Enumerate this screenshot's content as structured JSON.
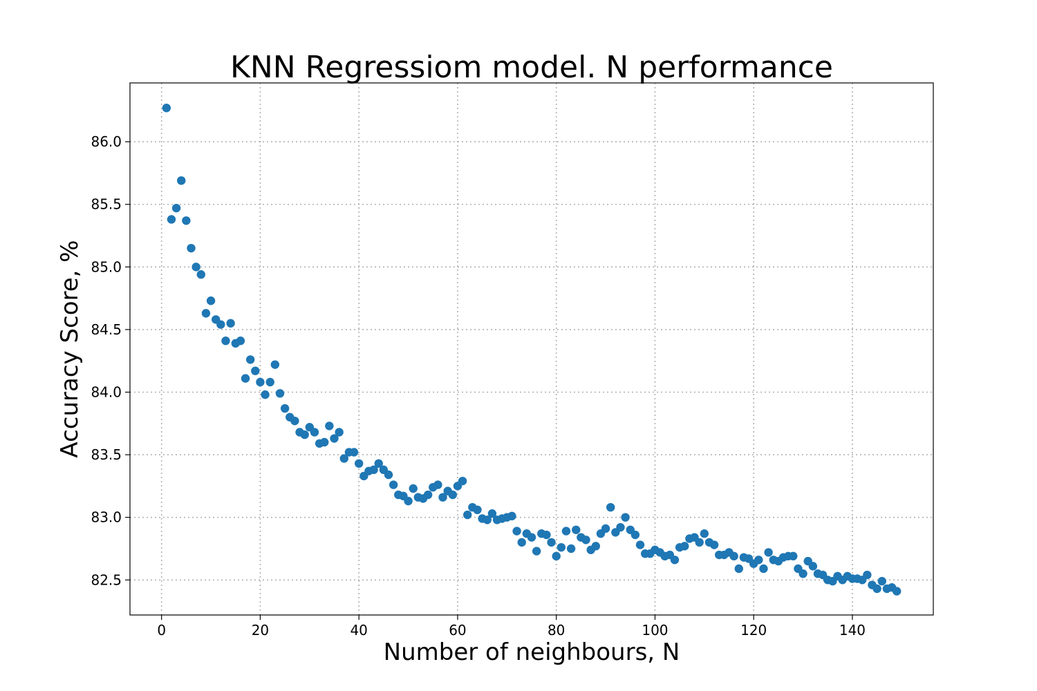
{
  "chart_data": {
    "type": "scatter",
    "title": "KNN Regressiom model. N performance",
    "xlabel": "Number of neighbours, N",
    "ylabel": "Accuracy Score, %",
    "xlim": [
      -6.4,
      156.4
    ],
    "ylim": [
      82.22,
      86.47
    ],
    "xticks": [
      0,
      20,
      40,
      60,
      80,
      100,
      120,
      140
    ],
    "yticks": [
      82.5,
      83.0,
      83.5,
      84.0,
      84.5,
      85.0,
      85.5,
      86.0
    ],
    "ytick_labels": [
      "82.5",
      "83.0",
      "83.5",
      "84.0",
      "84.5",
      "85.0",
      "85.5",
      "86.0"
    ],
    "grid": true,
    "marker_color": "#1f77b4",
    "x": [
      1,
      2,
      3,
      4,
      5,
      6,
      7,
      8,
      9,
      10,
      11,
      12,
      13,
      14,
      15,
      16,
      17,
      18,
      19,
      20,
      21,
      22,
      23,
      24,
      25,
      26,
      27,
      28,
      29,
      30,
      31,
      32,
      33,
      34,
      35,
      36,
      37,
      38,
      39,
      40,
      41,
      42,
      43,
      44,
      45,
      46,
      47,
      48,
      49,
      50,
      51,
      52,
      53,
      54,
      55,
      56,
      57,
      58,
      59,
      60,
      61,
      62,
      63,
      64,
      65,
      66,
      67,
      68,
      69,
      70,
      71,
      72,
      73,
      74,
      75,
      76,
      77,
      78,
      79,
      80,
      81,
      82,
      83,
      84,
      85,
      86,
      87,
      88,
      89,
      90,
      91,
      92,
      93,
      94,
      95,
      96,
      97,
      98,
      99,
      100,
      101,
      102,
      103,
      104,
      105,
      106,
      107,
      108,
      109,
      110,
      111,
      112,
      113,
      114,
      115,
      116,
      117,
      118,
      119,
      120,
      121,
      122,
      123,
      124,
      125,
      126,
      127,
      128,
      129,
      130,
      131,
      132,
      133,
      134,
      135,
      136,
      137,
      138,
      139,
      140,
      141,
      142,
      143,
      144,
      145,
      146,
      147,
      148,
      149
    ],
    "y": [
      86.27,
      85.38,
      85.47,
      85.69,
      85.37,
      85.15,
      85.0,
      84.94,
      84.63,
      84.73,
      84.58,
      84.54,
      84.41,
      84.55,
      84.39,
      84.41,
      84.11,
      84.26,
      84.17,
      84.08,
      83.98,
      84.08,
      84.22,
      83.99,
      83.87,
      83.8,
      83.77,
      83.68,
      83.66,
      83.72,
      83.68,
      83.59,
      83.6,
      83.73,
      83.63,
      83.68,
      83.47,
      83.52,
      83.52,
      83.43,
      83.33,
      83.37,
      83.38,
      83.43,
      83.38,
      83.34,
      83.26,
      83.18,
      83.17,
      83.13,
      83.23,
      83.16,
      83.15,
      83.18,
      83.24,
      83.26,
      83.16,
      83.21,
      83.18,
      83.25,
      83.29,
      83.02,
      83.08,
      83.06,
      82.99,
      82.98,
      83.03,
      82.98,
      82.99,
      83.0,
      83.01,
      82.89,
      82.8,
      82.87,
      82.84,
      82.73,
      82.87,
      82.86,
      82.8,
      82.69,
      82.76,
      82.89,
      82.75,
      82.9,
      82.84,
      82.82,
      82.74,
      82.77,
      82.87,
      82.91,
      83.08,
      82.88,
      82.92,
      83.0,
      82.9,
      82.86,
      82.78,
      82.71,
      82.71,
      82.74,
      82.72,
      82.69,
      82.7,
      82.66,
      82.76,
      82.77,
      82.83,
      82.84,
      82.8,
      82.87,
      82.8,
      82.78,
      82.7,
      82.7,
      82.72,
      82.69,
      82.59,
      82.68,
      82.67,
      82.63,
      82.66,
      82.59,
      82.72,
      82.66,
      82.65,
      82.68,
      82.69,
      82.69,
      82.59,
      82.55,
      82.65,
      82.61,
      82.55,
      82.54,
      82.5,
      82.49,
      82.53,
      82.5,
      82.53,
      82.51,
      82.51,
      82.5,
      82.54,
      82.46,
      82.43,
      82.49,
      82.43,
      82.44,
      82.41
    ]
  }
}
